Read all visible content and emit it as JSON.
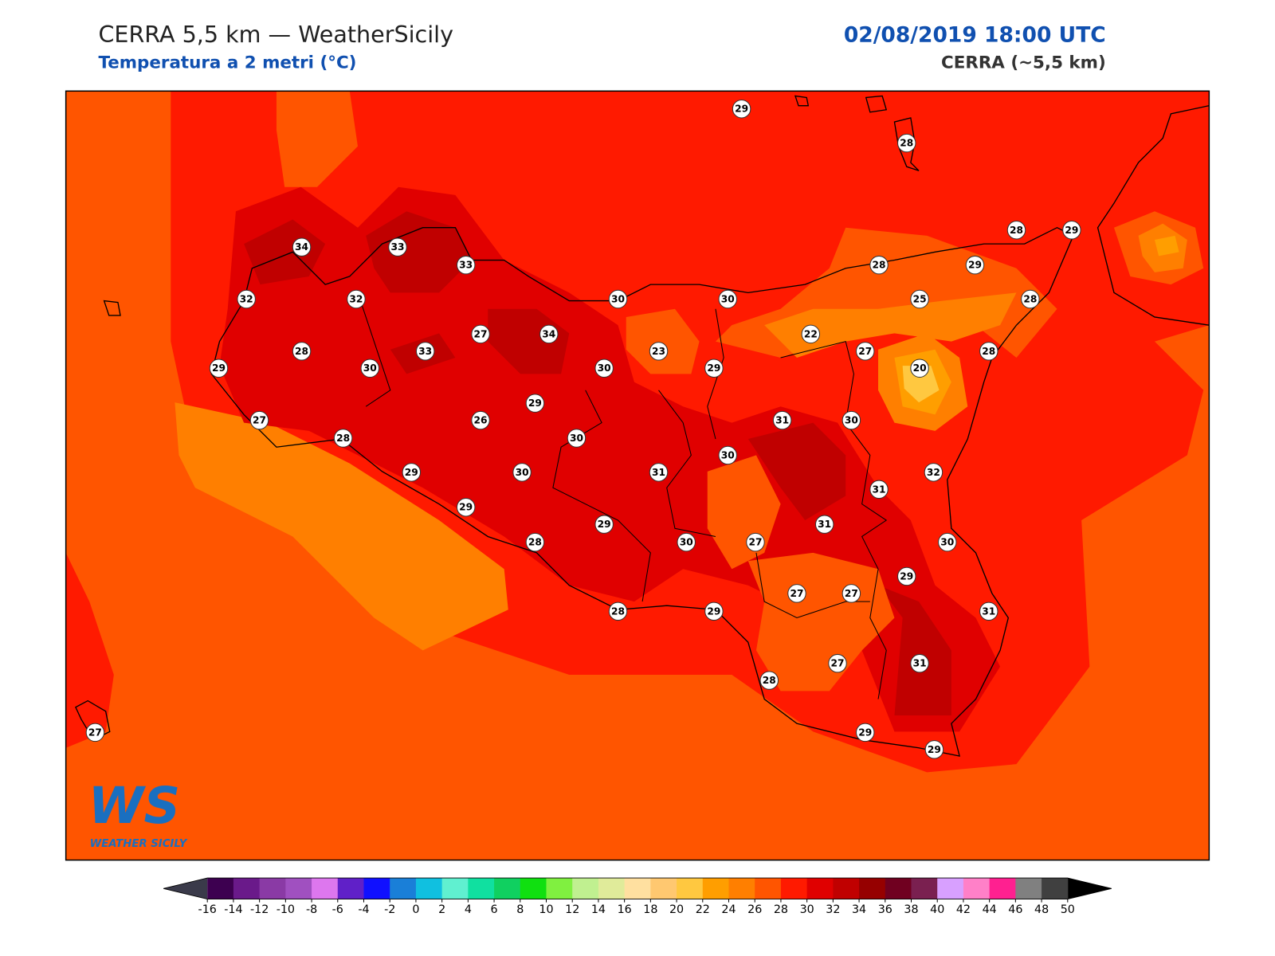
{
  "header": {
    "title": "CERRA 5,5 km — WeatherSicily",
    "subtitle": "Temperatura a 2 metri (°C)",
    "datetime": "02/08/2019 18:00 UTC",
    "model": "CERRA (~5,5 km)"
  },
  "logo": {
    "mark": "WS",
    "text": "WEATHER SICILY"
  },
  "stations": [
    29,
    28,
    28,
    29,
    34,
    33,
    33,
    28,
    29,
    32,
    32,
    30,
    30,
    25,
    28,
    27,
    34,
    22,
    28,
    33,
    23,
    27,
    28,
    29,
    30,
    30,
    29,
    20,
    29,
    27,
    26,
    31,
    30,
    28,
    30,
    30,
    29,
    30,
    31,
    32,
    31,
    29,
    31,
    29,
    28,
    30,
    27,
    30,
    29,
    27,
    27,
    28,
    29,
    31,
    27,
    31,
    28,
    29,
    29,
    27
  ],
  "colorbar": {
    "ticks": [
      -16,
      -14,
      -12,
      -10,
      -8,
      -6,
      -4,
      -2,
      0,
      2,
      4,
      6,
      8,
      10,
      12,
      14,
      16,
      18,
      20,
      22,
      24,
      26,
      28,
      30,
      32,
      34,
      36,
      38,
      40,
      42,
      44,
      46,
      48,
      50
    ],
    "colors": [
      "#3d0050",
      "#6a1a8a",
      "#8a3aa5",
      "#a050c0",
      "#dd77ee",
      "#6020c8",
      "#1010ff",
      "#1a7fd8",
      "#10c0e0",
      "#60f0d0",
      "#10e0a0",
      "#10d060",
      "#10e010",
      "#80f040",
      "#c0f090",
      "#e0eb9a",
      "#ffe0a0",
      "#ffc870",
      "#ffc840",
      "#ff9e00",
      "#ff7f00",
      "#ff5500",
      "#ff1a00",
      "#e00000",
      "#c00000",
      "#960000",
      "#700020",
      "#7a2050",
      "#d8a0ff",
      "#ff80c8",
      "#ff2090",
      "#808080",
      "#404040"
    ],
    "under": "#3a3a4a",
    "over": "#000000"
  }
}
